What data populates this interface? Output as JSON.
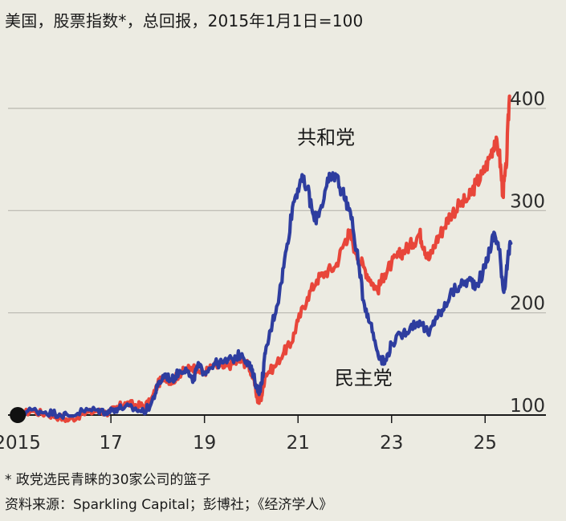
{
  "title": "美国，股票指数*，总回报，2015年1月1日=100",
  "footnote": "* 政党选民青睐的30家公司的篮子",
  "source": "资料来源：Sparkling Capital；彭博社；《经济学人》",
  "chart_data": {
    "type": "line",
    "ylim": [
      100,
      420
    ],
    "xlim": [
      2014.8,
      2026.3
    ],
    "y_ticks": [
      100,
      200,
      300,
      400
    ],
    "y_tick_labels": [
      "100",
      "200",
      "300",
      "400"
    ],
    "x_ticks": [
      2015,
      2017,
      2019,
      2021,
      2023,
      2025
    ],
    "x_tick_labels": [
      "2015",
      "17",
      "19",
      "21",
      "23",
      "25"
    ],
    "grid": true,
    "start_marker": {
      "x": 2015.0,
      "y": 100
    },
    "series": [
      {
        "name": "共和党",
        "color": "#e8463a",
        "points": [
          [
            2015.0,
            100
          ],
          [
            2015.3,
            104
          ],
          [
            2015.6,
            101
          ],
          [
            2015.9,
            98
          ],
          [
            2016.1,
            95
          ],
          [
            2016.4,
            101
          ],
          [
            2016.7,
            104
          ],
          [
            2016.9,
            102
          ],
          [
            2017.1,
            106
          ],
          [
            2017.3,
            112
          ],
          [
            2017.5,
            110
          ],
          [
            2017.7,
            109
          ],
          [
            2017.85,
            113
          ],
          [
            2018.0,
            130
          ],
          [
            2018.15,
            138
          ],
          [
            2018.3,
            132
          ],
          [
            2018.45,
            140
          ],
          [
            2018.6,
            144
          ],
          [
            2018.75,
            147
          ],
          [
            2018.85,
            143
          ],
          [
            2019.0,
            142
          ],
          [
            2019.2,
            148
          ],
          [
            2019.4,
            146
          ],
          [
            2019.6,
            150
          ],
          [
            2019.8,
            153
          ],
          [
            2019.95,
            148
          ],
          [
            2020.05,
            135
          ],
          [
            2020.15,
            112
          ],
          [
            2020.22,
            118
          ],
          [
            2020.3,
            140
          ],
          [
            2020.5,
            147
          ],
          [
            2020.7,
            162
          ],
          [
            2020.85,
            170
          ],
          [
            2021.0,
            192
          ],
          [
            2021.2,
            215
          ],
          [
            2021.4,
            232
          ],
          [
            2021.6,
            240
          ],
          [
            2021.8,
            245
          ],
          [
            2022.0,
            270
          ],
          [
            2022.1,
            278
          ],
          [
            2022.25,
            258
          ],
          [
            2022.4,
            245
          ],
          [
            2022.55,
            232
          ],
          [
            2022.7,
            222
          ],
          [
            2022.85,
            238
          ],
          [
            2023.0,
            248
          ],
          [
            2023.15,
            256
          ],
          [
            2023.3,
            262
          ],
          [
            2023.45,
            268
          ],
          [
            2023.6,
            278
          ],
          [
            2023.7,
            264
          ],
          [
            2023.8,
            252
          ],
          [
            2023.95,
            270
          ],
          [
            2024.1,
            282
          ],
          [
            2024.25,
            296
          ],
          [
            2024.45,
            305
          ],
          [
            2024.65,
            312
          ],
          [
            2024.8,
            326
          ],
          [
            2024.95,
            336
          ],
          [
            2025.1,
            352
          ],
          [
            2025.2,
            368
          ],
          [
            2025.3,
            358
          ],
          [
            2025.38,
            316
          ],
          [
            2025.45,
            342
          ],
          [
            2025.52,
            412
          ]
        ]
      },
      {
        "name": "民主党",
        "color": "#2e3d9f",
        "points": [
          [
            2015.0,
            100
          ],
          [
            2015.3,
            105
          ],
          [
            2015.6,
            103
          ],
          [
            2015.9,
            101
          ],
          [
            2016.1,
            99
          ],
          [
            2016.4,
            104
          ],
          [
            2016.7,
            105
          ],
          [
            2016.9,
            103
          ],
          [
            2017.1,
            106
          ],
          [
            2017.3,
            108
          ],
          [
            2017.5,
            106
          ],
          [
            2017.7,
            103
          ],
          [
            2017.85,
            110
          ],
          [
            2018.0,
            128
          ],
          [
            2018.15,
            140
          ],
          [
            2018.3,
            134
          ],
          [
            2018.45,
            142
          ],
          [
            2018.6,
            146
          ],
          [
            2018.75,
            132
          ],
          [
            2018.85,
            148
          ],
          [
            2019.0,
            142
          ],
          [
            2019.2,
            150
          ],
          [
            2019.4,
            151
          ],
          [
            2019.6,
            155
          ],
          [
            2019.8,
            160
          ],
          [
            2019.95,
            150
          ],
          [
            2020.05,
            138
          ],
          [
            2020.15,
            122
          ],
          [
            2020.22,
            130
          ],
          [
            2020.3,
            160
          ],
          [
            2020.45,
            190
          ],
          [
            2020.6,
            218
          ],
          [
            2020.75,
            262
          ],
          [
            2020.9,
            308
          ],
          [
            2021.05,
            330
          ],
          [
            2021.2,
            322
          ],
          [
            2021.35,
            290
          ],
          [
            2021.5,
            305
          ],
          [
            2021.65,
            328
          ],
          [
            2021.8,
            336
          ],
          [
            2021.95,
            318
          ],
          [
            2022.1,
            302
          ],
          [
            2022.25,
            262
          ],
          [
            2022.4,
            212
          ],
          [
            2022.55,
            190
          ],
          [
            2022.7,
            162
          ],
          [
            2022.85,
            150
          ],
          [
            2023.0,
            170
          ],
          [
            2023.2,
            178
          ],
          [
            2023.4,
            186
          ],
          [
            2023.6,
            192
          ],
          [
            2023.8,
            178
          ],
          [
            2023.95,
            196
          ],
          [
            2024.1,
            202
          ],
          [
            2024.25,
            218
          ],
          [
            2024.45,
            226
          ],
          [
            2024.65,
            232
          ],
          [
            2024.8,
            228
          ],
          [
            2024.95,
            238
          ],
          [
            2025.1,
            262
          ],
          [
            2025.2,
            278
          ],
          [
            2025.3,
            262
          ],
          [
            2025.4,
            220
          ],
          [
            2025.48,
            250
          ],
          [
            2025.55,
            268
          ]
        ]
      }
    ],
    "labels": [
      {
        "text": "共和党",
        "x": 2021.6,
        "y": 365
      },
      {
        "text": "民主党",
        "x": 2022.4,
        "y": 130
      }
    ]
  }
}
